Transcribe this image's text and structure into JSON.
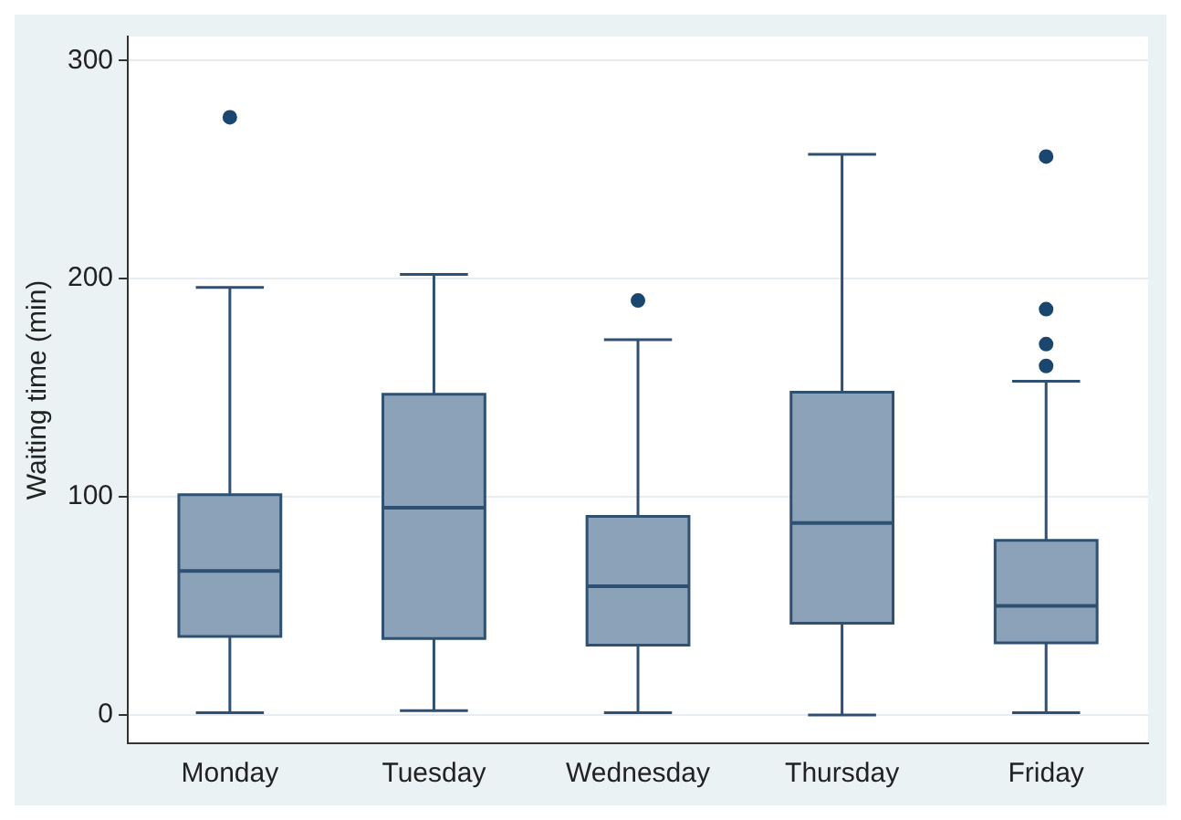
{
  "chart_data": {
    "type": "box",
    "ylabel": "Waiting time (min)",
    "categories": [
      "Monday",
      "Tuesday",
      "Wednesday",
      "Thursday",
      "Friday"
    ],
    "series": [
      {
        "color": "#8ca2b8",
        "boxes": [
          {
            "low": 1,
            "q1": 36,
            "median": 66,
            "q3": 101,
            "high": 196,
            "outliers": [
              274
            ]
          },
          {
            "low": 2,
            "q1": 35,
            "median": 95,
            "q3": 147,
            "high": 202
          },
          {
            "low": 1,
            "q1": 32,
            "median": 59,
            "q3": 91,
            "high": 172,
            "outliers": [
              190
            ]
          },
          {
            "low": 0,
            "q1": 42,
            "median": 88,
            "q3": 148,
            "high": 257
          },
          {
            "low": 1,
            "q1": 33,
            "median": 50,
            "q3": 80,
            "high": 153,
            "outliers": [
              256,
              186,
              170,
              160
            ]
          }
        ]
      }
    ],
    "ylim": [
      -13,
      311
    ],
    "yticks": [
      0,
      100,
      200,
      300
    ],
    "grid": "y"
  }
}
